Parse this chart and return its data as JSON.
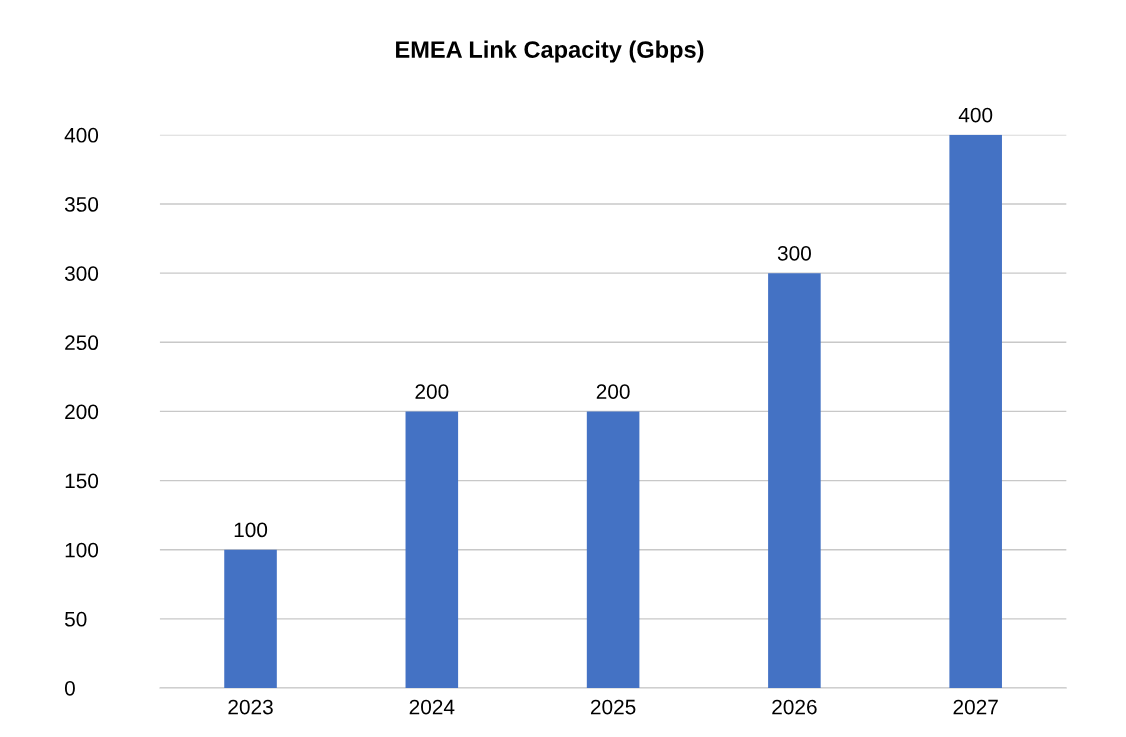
{
  "chart_data": {
    "type": "bar",
    "title": "EMEA Link Capacity (Gbps)",
    "categories": [
      "2023",
      "2024",
      "2025",
      "2026",
      "2027"
    ],
    "values": [
      100,
      200,
      200,
      300,
      400
    ],
    "color": "#4472c4",
    "ylim": [
      0,
      400
    ],
    "yticks": [
      0,
      50,
      100,
      150,
      200,
      250,
      300,
      350,
      400
    ],
    "grid": "y",
    "data_labels": true
  }
}
